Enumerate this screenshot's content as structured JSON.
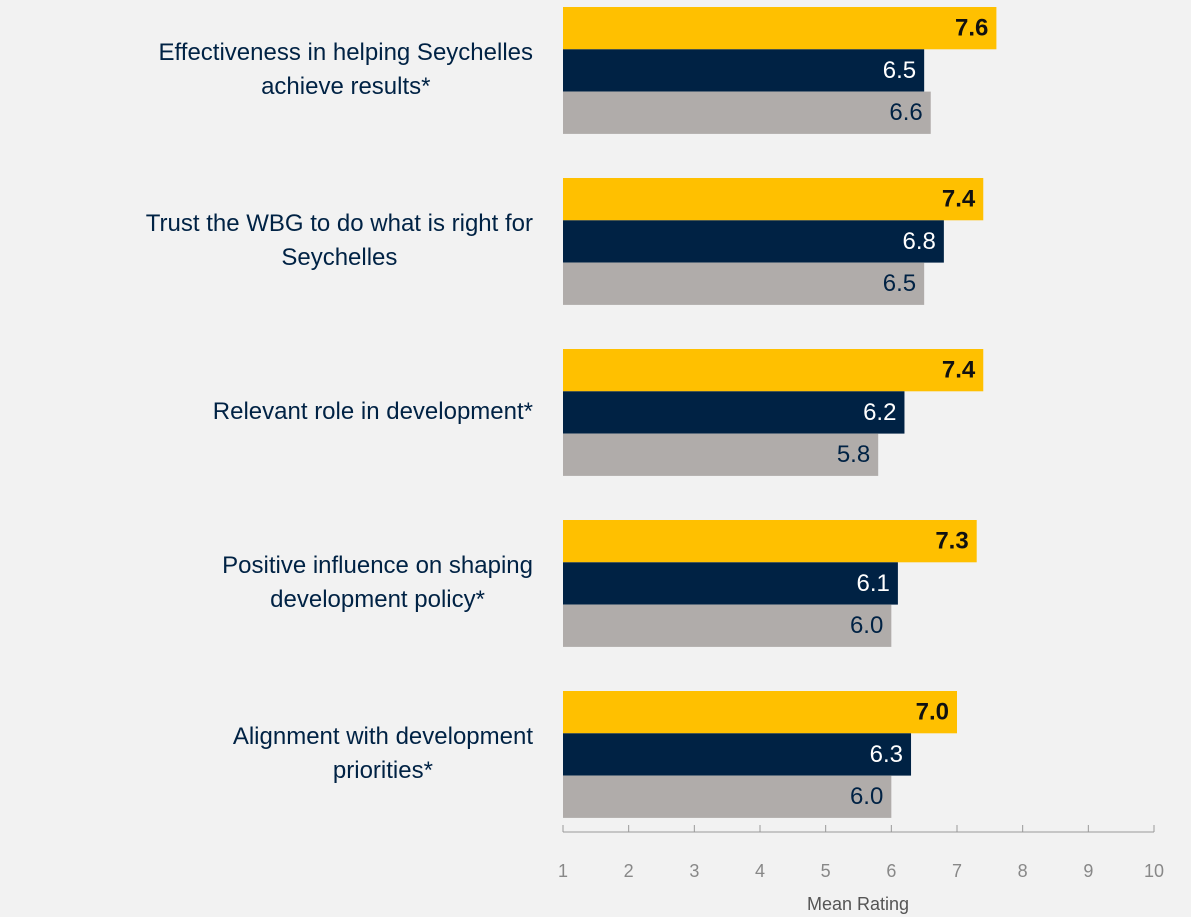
{
  "chart_data": {
    "type": "barh",
    "categories": [
      [
        "Effectiveness in helping Seychelles",
        "achieve results*"
      ],
      [
        "Trust the WBG to do what is right for",
        "Seychelles"
      ],
      [
        "Relevant role in development*"
      ],
      [
        "Positive influence on shaping",
        "development policy*"
      ],
      [
        "Alignment with development",
        "priorities*"
      ]
    ],
    "series": [
      {
        "color": "#ffc000",
        "values": [
          7.6,
          7.4,
          7.4,
          7.3,
          7.0
        ],
        "value_labels": [
          "7.6",
          "7.4",
          "7.4",
          "7.3",
          "7.0"
        ]
      },
      {
        "color": "#002244",
        "values": [
          6.5,
          6.8,
          6.2,
          6.1,
          6.3
        ],
        "value_labels": [
          "6.5",
          "6.8",
          "6.2",
          "6.1",
          "6.3"
        ]
      },
      {
        "color": "#b0acaa",
        "values": [
          6.6,
          6.5,
          5.8,
          6.0,
          6.0
        ],
        "value_labels": [
          "6.6",
          "6.5",
          "5.8",
          "6.0",
          "6.0"
        ]
      }
    ],
    "xlim": [
      1,
      10
    ],
    "xticks": [
      1,
      2,
      3,
      4,
      5,
      6,
      7,
      8,
      9,
      10
    ],
    "xlabel": "Mean Rating"
  }
}
